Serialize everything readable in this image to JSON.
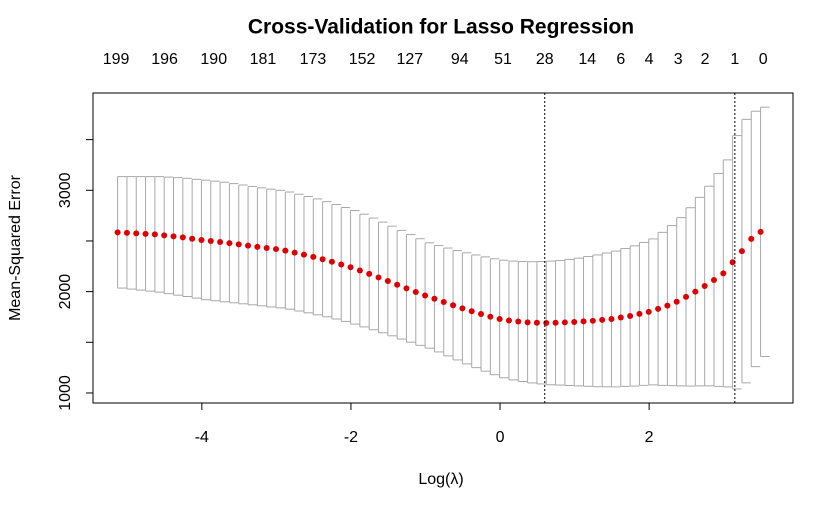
{
  "chart_data": {
    "type": "errorbar",
    "title": "Cross-Validation for Lasso Regression",
    "xlabel": "Log(λ)",
    "ylabel": "Mean-Squared Error",
    "x": [
      -5.13,
      -5.005,
      -4.88,
      -4.755,
      -4.63,
      -4.505,
      -4.38,
      -4.255,
      -4.13,
      -4.005,
      -3.88,
      -3.755,
      -3.63,
      -3.505,
      -3.38,
      -3.255,
      -3.13,
      -3.005,
      -2.88,
      -2.755,
      -2.63,
      -2.505,
      -2.38,
      -2.255,
      -2.13,
      -2.005,
      -1.88,
      -1.755,
      -1.63,
      -1.505,
      -1.38,
      -1.255,
      -1.13,
      -1.005,
      -0.88,
      -0.755,
      -0.63,
      -0.505,
      -0.38,
      -0.255,
      -0.13,
      -0.005,
      0.12,
      0.245,
      0.37,
      0.495,
      0.62,
      0.745,
      0.87,
      0.995,
      1.12,
      1.245,
      1.37,
      1.495,
      1.62,
      1.745,
      1.87,
      1.995,
      2.12,
      2.245,
      2.37,
      2.495,
      2.62,
      2.745,
      2.87,
      2.995,
      3.12,
      3.245,
      3.37,
      3.495
    ],
    "values": [
      2585,
      2580,
      2575,
      2570,
      2565,
      2555,
      2545,
      2535,
      2522,
      2510,
      2500,
      2490,
      2478,
      2466,
      2454,
      2442,
      2430,
      2420,
      2405,
      2385,
      2365,
      2343,
      2320,
      2295,
      2268,
      2240,
      2208,
      2175,
      2140,
      2105,
      2068,
      2032,
      1996,
      1962,
      1930,
      1898,
      1866,
      1835,
      1806,
      1779,
      1752,
      1730,
      1715,
      1705,
      1697,
      1693,
      1691,
      1693,
      1696,
      1700,
      1706,
      1712,
      1721,
      1730,
      1745,
      1760,
      1780,
      1800,
      1830,
      1862,
      1900,
      1948,
      2000,
      2055,
      2115,
      2180,
      2290,
      2400,
      2520,
      2590
    ],
    "errors": [
      550,
      555,
      560,
      565,
      570,
      575,
      580,
      583,
      586,
      590,
      590,
      590,
      588,
      586,
      584,
      582,
      581,
      580,
      578,
      576,
      574,
      572,
      568,
      565,
      562,
      560,
      556,
      551,
      546,
      541,
      536,
      531,
      526,
      520,
      525,
      532,
      540,
      548,
      556,
      564,
      572,
      580,
      586,
      592,
      598,
      604,
      610,
      615,
      622,
      630,
      640,
      650,
      660,
      670,
      680,
      692,
      705,
      720,
      755,
      790,
      830,
      880,
      930,
      985,
      1050,
      1120,
      1250,
      1300,
      1260,
      1230
    ],
    "color": "#e00000",
    "error_color": "#a8a8a8",
    "xlim": [
      -5.46,
      3.93
    ],
    "ylim": [
      901,
      3960
    ],
    "xticks": [
      -4,
      -2,
      0,
      2
    ],
    "yticks": [
      1000,
      2000,
      3000
    ],
    "yminor_ticks": [
      1500,
      2500,
      3500
    ],
    "top_ticks": [
      {
        "value": -5.15,
        "label": "199"
      },
      {
        "value": -4.5,
        "label": "196"
      },
      {
        "value": -3.84,
        "label": "190"
      },
      {
        "value": -3.18,
        "label": "181"
      },
      {
        "value": -2.51,
        "label": "173"
      },
      {
        "value": -1.85,
        "label": "152"
      },
      {
        "value": -1.21,
        "label": "127"
      },
      {
        "value": -0.54,
        "label": "94"
      },
      {
        "value": 0.04,
        "label": "51"
      },
      {
        "value": 0.6,
        "label": "28"
      },
      {
        "value": 1.17,
        "label": "14"
      },
      {
        "value": 1.62,
        "label": "6"
      },
      {
        "value": 2.0,
        "label": "4"
      },
      {
        "value": 2.39,
        "label": "3"
      },
      {
        "value": 2.75,
        "label": "2"
      },
      {
        "value": 3.15,
        "label": "1"
      },
      {
        "value": 3.53,
        "label": "0"
      }
    ],
    "vlines": [
      0.6,
      3.15
    ]
  }
}
